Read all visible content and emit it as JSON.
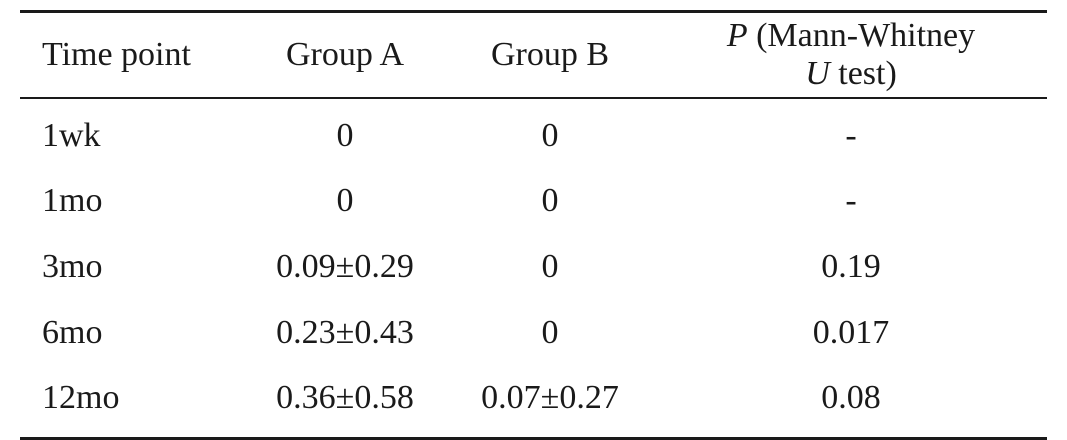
{
  "table": {
    "headers": {
      "time_point": "Time point",
      "group_a": "Group A",
      "group_b": "Group B",
      "p_symbol": "P",
      "p_line1_rest": " (Mann-Whitney",
      "u_symbol": "U",
      "p_line2_rest": " test)"
    },
    "rows": [
      {
        "time": "1wk",
        "group_a": "0",
        "group_b": "0",
        "p": "-"
      },
      {
        "time": "1mo",
        "group_a": "0",
        "group_b": "0",
        "p": "-"
      },
      {
        "time": "3mo",
        "group_a": "0.09±0.29",
        "group_b": "0",
        "p": "0.19"
      },
      {
        "time": "6mo",
        "group_a": "0.23±0.43",
        "group_b": "0",
        "p": "0.017"
      },
      {
        "time": "12mo",
        "group_a": "0.36±0.58",
        "group_b": "0.07±0.27",
        "p": "0.08"
      }
    ]
  }
}
